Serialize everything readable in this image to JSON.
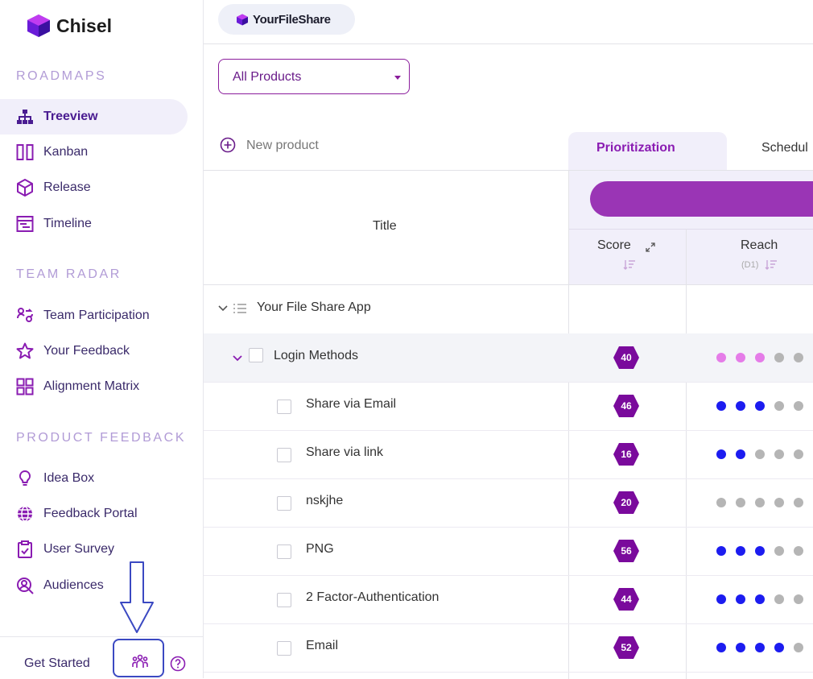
{
  "app": {
    "name": "Chisel"
  },
  "sidebar": {
    "sections": [
      {
        "title": "ROADMAPS",
        "items": [
          {
            "label": "Treeview",
            "icon": "treeview-icon",
            "active": true
          },
          {
            "label": "Kanban",
            "icon": "kanban-icon"
          },
          {
            "label": "Release",
            "icon": "release-icon"
          },
          {
            "label": "Timeline",
            "icon": "timeline-icon"
          }
        ]
      },
      {
        "title": "TEAM RADAR",
        "items": [
          {
            "label": "Team Participation",
            "icon": "team-participation-icon"
          },
          {
            "label": "Your Feedback",
            "icon": "star-icon"
          },
          {
            "label": "Alignment Matrix",
            "icon": "grid-icon"
          }
        ]
      },
      {
        "title": "PRODUCT FEEDBACK",
        "items": [
          {
            "label": "Idea Box",
            "icon": "lightbulb-icon"
          },
          {
            "label": "Feedback Portal",
            "icon": "globe-icon"
          },
          {
            "label": "User Survey",
            "icon": "clipboard-check-icon"
          },
          {
            "label": "Audiences",
            "icon": "user-search-icon"
          }
        ]
      }
    ],
    "footer": {
      "get_started": "Get Started"
    }
  },
  "topbar": {
    "workspace": "YourFileShare"
  },
  "filter": {
    "product_select": "All Products"
  },
  "actions": {
    "new_product": "New product"
  },
  "tabs": {
    "prioritization": "Prioritization",
    "scheduling": "Schedul"
  },
  "table": {
    "title_header": "Title",
    "score_header": "Score",
    "reach_header": "Reach",
    "reach_sub": "(D1)",
    "colors": {
      "pink": "#e57ce8",
      "blue": "#1c1cf0",
      "grey": "#b5b5b5",
      "score": "#7a0a9c"
    },
    "rows": [
      {
        "level": 0,
        "title": "Your File Share App",
        "type": "product"
      },
      {
        "level": 1,
        "title": "Login Methods",
        "type": "group",
        "score": "40",
        "reach": [
          "pink",
          "pink",
          "pink",
          "grey",
          "grey"
        ]
      },
      {
        "level": 2,
        "title": "Share via Email",
        "score": "46",
        "reach": [
          "blue",
          "blue",
          "blue",
          "grey",
          "grey"
        ]
      },
      {
        "level": 2,
        "title": "Share via link",
        "score": "16",
        "reach": [
          "blue",
          "blue",
          "grey",
          "grey",
          "grey"
        ]
      },
      {
        "level": 2,
        "title": "nskjhe",
        "score": "20",
        "reach": [
          "grey",
          "grey",
          "grey",
          "grey",
          "grey"
        ]
      },
      {
        "level": 2,
        "title": "PNG",
        "score": "56",
        "reach": [
          "blue",
          "blue",
          "blue",
          "grey",
          "grey"
        ]
      },
      {
        "level": 2,
        "title": "2 Factor-Authentication",
        "score": "44",
        "reach": [
          "blue",
          "blue",
          "blue",
          "grey",
          "grey"
        ]
      },
      {
        "level": 2,
        "title": "Email",
        "score": "52",
        "reach": [
          "blue",
          "blue",
          "blue",
          "blue",
          "grey"
        ]
      }
    ]
  }
}
